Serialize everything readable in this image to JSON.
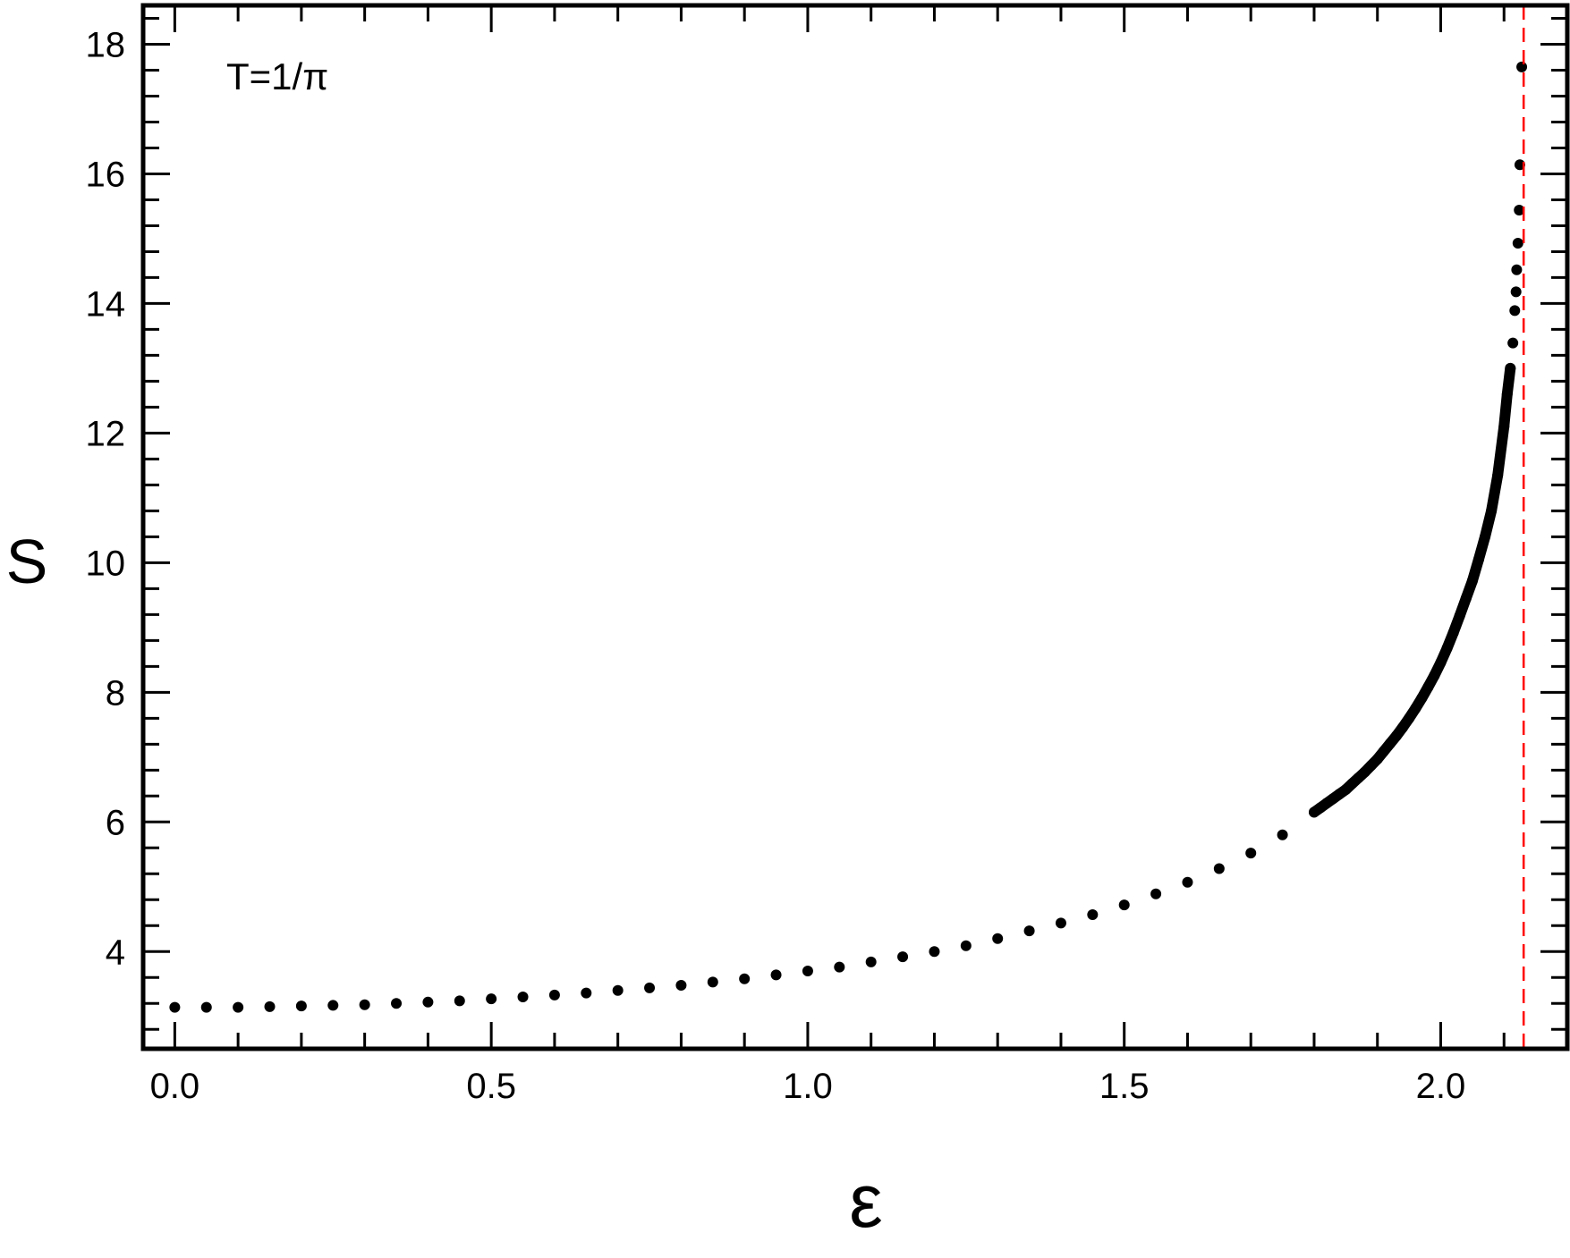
{
  "chart_data": {
    "type": "scatter",
    "title": "",
    "annotation": "T=1/π",
    "xlabel": "ε",
    "ylabel": "S",
    "xlim": [
      -0.05,
      2.2
    ],
    "ylim": [
      2.5,
      18.6
    ],
    "xticks": [
      "0.0",
      "0.5",
      "1.0",
      "1.5",
      "2.0"
    ],
    "xtick_values": [
      0,
      0.5,
      1.0,
      1.5,
      2.0
    ],
    "yticks": [
      "4",
      "6",
      "8",
      "10",
      "12",
      "14",
      "16",
      "18"
    ],
    "ytick_values": [
      4,
      6,
      8,
      10,
      12,
      14,
      16,
      18
    ],
    "grid": false,
    "marker_color": "#000000",
    "reference_line": {
      "orientation": "vertical",
      "x": 2.131,
      "style": "dashed",
      "color": "#ff0000"
    },
    "sparse_points": [
      [
        0.0,
        3.14
      ],
      [
        0.05,
        3.14
      ],
      [
        0.1,
        3.14
      ],
      [
        0.15,
        3.15
      ],
      [
        0.2,
        3.16
      ],
      [
        0.25,
        3.17
      ],
      [
        0.3,
        3.18
      ],
      [
        0.35,
        3.2
      ],
      [
        0.4,
        3.22
      ],
      [
        0.45,
        3.24
      ],
      [
        0.5,
        3.27
      ],
      [
        0.55,
        3.3
      ],
      [
        0.6,
        3.33
      ],
      [
        0.65,
        3.36
      ],
      [
        0.7,
        3.4
      ],
      [
        0.75,
        3.44
      ],
      [
        0.8,
        3.48
      ],
      [
        0.85,
        3.53
      ],
      [
        0.9,
        3.58
      ],
      [
        0.95,
        3.64
      ],
      [
        1.0,
        3.7
      ],
      [
        1.05,
        3.76
      ],
      [
        1.1,
        3.84
      ],
      [
        1.15,
        3.92
      ],
      [
        1.2,
        4.0
      ],
      [
        1.25,
        4.09
      ],
      [
        1.3,
        4.2
      ],
      [
        1.35,
        4.32
      ],
      [
        1.4,
        4.44
      ],
      [
        1.45,
        4.57
      ],
      [
        1.5,
        4.72
      ],
      [
        1.55,
        4.89
      ],
      [
        1.6,
        5.07
      ],
      [
        1.65,
        5.28
      ],
      [
        1.7,
        5.52
      ],
      [
        1.75,
        5.8
      ]
    ],
    "dense_points": [
      [
        1.8,
        6.15
      ],
      [
        1.81,
        6.22
      ],
      [
        1.82,
        6.29
      ],
      [
        1.83,
        6.36
      ],
      [
        1.84,
        6.43
      ],
      [
        1.85,
        6.5
      ],
      [
        1.86,
        6.59
      ],
      [
        1.87,
        6.68
      ],
      [
        1.88,
        6.77
      ],
      [
        1.89,
        6.87
      ],
      [
        1.9,
        6.97
      ],
      [
        1.91,
        7.09
      ],
      [
        1.92,
        7.21
      ],
      [
        1.93,
        7.33
      ],
      [
        1.94,
        7.46
      ],
      [
        1.95,
        7.6
      ],
      [
        1.96,
        7.75
      ],
      [
        1.97,
        7.91
      ],
      [
        1.98,
        8.08
      ],
      [
        1.99,
        8.26
      ],
      [
        2.0,
        8.46
      ],
      [
        2.01,
        8.68
      ],
      [
        2.02,
        8.92
      ],
      [
        2.03,
        9.18
      ],
      [
        2.04,
        9.45
      ],
      [
        2.05,
        9.72
      ],
      [
        2.06,
        10.05
      ],
      [
        2.07,
        10.4
      ],
      [
        2.08,
        10.8
      ],
      [
        2.09,
        11.35
      ],
      [
        2.1,
        12.1
      ],
      [
        2.105,
        12.6
      ],
      [
        2.11,
        13.0
      ]
    ],
    "tail_points": [
      [
        2.114,
        13.39
      ],
      [
        2.117,
        13.89
      ],
      [
        2.119,
        14.18
      ],
      [
        2.12,
        14.52
      ],
      [
        2.122,
        14.93
      ],
      [
        2.124,
        15.44
      ],
      [
        2.125,
        16.14
      ],
      [
        2.128,
        17.65
      ]
    ]
  }
}
